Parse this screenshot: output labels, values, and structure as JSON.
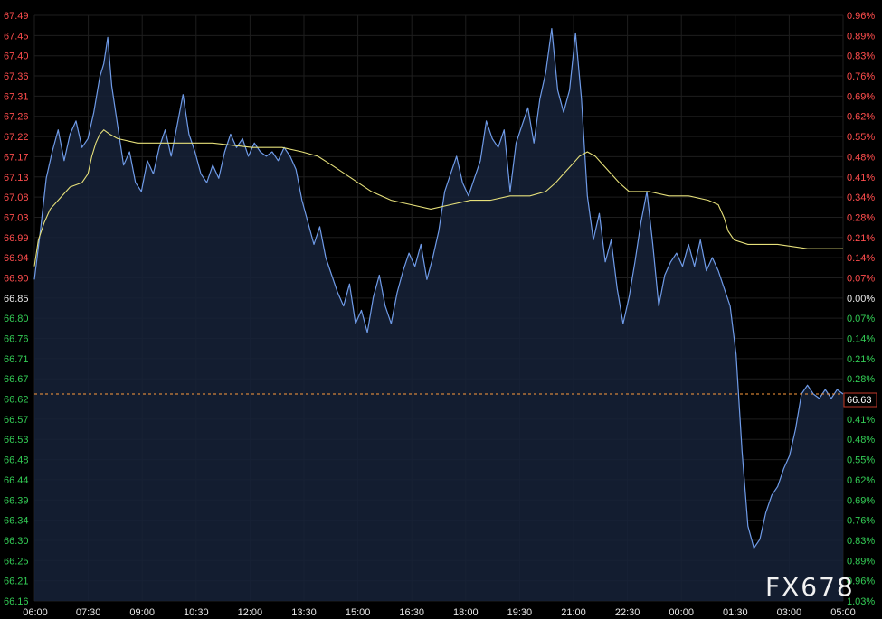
{
  "chart_data": {
    "type": "line",
    "reference_price": 66.85,
    "last_price": 66.63,
    "last_price_label": "66.63",
    "watermark": "FX678",
    "grid": true,
    "colors": {
      "background": "#000000",
      "grid": "#1e1e1e",
      "price_line": "#6f9be8",
      "price_fill": "#162238",
      "average_line": "#e6e07a",
      "reference_line": "#ff9b3d",
      "up_label": "#ff4d4d",
      "down_label": "#33cc55",
      "neutral_label": "#e8e8e8"
    },
    "x_ticks": [
      "06:00",
      "07:30",
      "09:00",
      "10:30",
      "12:00",
      "13:30",
      "15:00",
      "16:30",
      "18:00",
      "19:30",
      "21:00",
      "22:30",
      "00:00",
      "01:30",
      "03:00",
      "05:00"
    ],
    "y_ticks": [
      {
        "price": "67.49",
        "pct": "0.96%",
        "dir": "up"
      },
      {
        "price": "67.45",
        "pct": "0.89%",
        "dir": "up"
      },
      {
        "price": "67.40",
        "pct": "0.83%",
        "dir": "up"
      },
      {
        "price": "67.36",
        "pct": "0.76%",
        "dir": "up"
      },
      {
        "price": "67.31",
        "pct": "0.69%",
        "dir": "up"
      },
      {
        "price": "67.26",
        "pct": "0.62%",
        "dir": "up"
      },
      {
        "price": "67.22",
        "pct": "0.55%",
        "dir": "up"
      },
      {
        "price": "67.17",
        "pct": "0.48%",
        "dir": "up"
      },
      {
        "price": "67.13",
        "pct": "0.41%",
        "dir": "up"
      },
      {
        "price": "67.08",
        "pct": "0.34%",
        "dir": "up"
      },
      {
        "price": "67.03",
        "pct": "0.28%",
        "dir": "up"
      },
      {
        "price": "66.99",
        "pct": "0.21%",
        "dir": "up"
      },
      {
        "price": "66.94",
        "pct": "0.14%",
        "dir": "up"
      },
      {
        "price": "66.90",
        "pct": "0.07%",
        "dir": "up"
      },
      {
        "price": "66.85",
        "pct": "0.00%",
        "dir": "flat"
      },
      {
        "price": "66.80",
        "pct": "0.07%",
        "dir": "down"
      },
      {
        "price": "66.76",
        "pct": "0.14%",
        "dir": "down"
      },
      {
        "price": "66.71",
        "pct": "0.21%",
        "dir": "down"
      },
      {
        "price": "66.67",
        "pct": "0.28%",
        "dir": "down"
      },
      {
        "price": "66.62",
        "pct": "",
        "dir": "down"
      },
      {
        "price": "66.57",
        "pct": "0.41%",
        "dir": "down"
      },
      {
        "price": "66.53",
        "pct": "0.48%",
        "dir": "down"
      },
      {
        "price": "66.48",
        "pct": "0.55%",
        "dir": "down"
      },
      {
        "price": "66.44",
        "pct": "0.62%",
        "dir": "down"
      },
      {
        "price": "66.39",
        "pct": "0.69%",
        "dir": "down"
      },
      {
        "price": "66.34",
        "pct": "0.76%",
        "dir": "down"
      },
      {
        "price": "66.30",
        "pct": "0.83%",
        "dir": "down"
      },
      {
        "price": "66.25",
        "pct": "0.89%",
        "dir": "down"
      },
      {
        "price": "66.21",
        "pct": "0.96%",
        "dir": "down"
      },
      {
        "price": "66.16",
        "pct": "1.03%",
        "dir": "down"
      }
    ],
    "ylim": [
      66.16,
      67.49
    ],
    "series": [
      {
        "role": "price",
        "points": [
          [
            0,
            66.89
          ],
          [
            3,
            67.0
          ],
          [
            6,
            67.12
          ],
          [
            9,
            67.18
          ],
          [
            12,
            67.23
          ],
          [
            15,
            67.16
          ],
          [
            18,
            67.22
          ],
          [
            21,
            67.25
          ],
          [
            24,
            67.19
          ],
          [
            27,
            67.21
          ],
          [
            30,
            67.27
          ],
          [
            33,
            67.35
          ],
          [
            35,
            67.38
          ],
          [
            37,
            67.44
          ],
          [
            39,
            67.33
          ],
          [
            42,
            67.24
          ],
          [
            45,
            67.15
          ],
          [
            48,
            67.18
          ],
          [
            51,
            67.11
          ],
          [
            54,
            67.09
          ],
          [
            57,
            67.16
          ],
          [
            60,
            67.13
          ],
          [
            63,
            67.19
          ],
          [
            66,
            67.23
          ],
          [
            69,
            67.17
          ],
          [
            72,
            67.24
          ],
          [
            75,
            67.31
          ],
          [
            78,
            67.22
          ],
          [
            81,
            67.18
          ],
          [
            84,
            67.13
          ],
          [
            87,
            67.11
          ],
          [
            90,
            67.15
          ],
          [
            93,
            67.12
          ],
          [
            96,
            67.18
          ],
          [
            99,
            67.22
          ],
          [
            102,
            67.19
          ],
          [
            105,
            67.21
          ],
          [
            108,
            67.17
          ],
          [
            111,
            67.2
          ],
          [
            114,
            67.18
          ],
          [
            117,
            67.17
          ],
          [
            120,
            67.18
          ],
          [
            123,
            67.16
          ],
          [
            126,
            67.19
          ],
          [
            129,
            67.17
          ],
          [
            132,
            67.14
          ],
          [
            135,
            67.07
          ],
          [
            138,
            67.02
          ],
          [
            141,
            66.97
          ],
          [
            144,
            67.01
          ],
          [
            147,
            66.94
          ],
          [
            150,
            66.9
          ],
          [
            153,
            66.86
          ],
          [
            156,
            66.83
          ],
          [
            159,
            66.88
          ],
          [
            162,
            66.79
          ],
          [
            165,
            66.82
          ],
          [
            168,
            66.77
          ],
          [
            171,
            66.85
          ],
          [
            174,
            66.9
          ],
          [
            177,
            66.83
          ],
          [
            180,
            66.79
          ],
          [
            183,
            66.86
          ],
          [
            186,
            66.91
          ],
          [
            189,
            66.95
          ],
          [
            192,
            66.92
          ],
          [
            195,
            66.97
          ],
          [
            198,
            66.89
          ],
          [
            201,
            66.94
          ],
          [
            204,
            67.0
          ],
          [
            207,
            67.09
          ],
          [
            210,
            67.13
          ],
          [
            213,
            67.17
          ],
          [
            216,
            67.11
          ],
          [
            219,
            67.08
          ],
          [
            222,
            67.12
          ],
          [
            225,
            67.16
          ],
          [
            228,
            67.25
          ],
          [
            231,
            67.21
          ],
          [
            234,
            67.19
          ],
          [
            237,
            67.23
          ],
          [
            240,
            67.09
          ],
          [
            243,
            67.2
          ],
          [
            246,
            67.24
          ],
          [
            249,
            67.28
          ],
          [
            252,
            67.2
          ],
          [
            255,
            67.3
          ],
          [
            258,
            67.36
          ],
          [
            261,
            67.46
          ],
          [
            264,
            67.32
          ],
          [
            267,
            67.27
          ],
          [
            270,
            67.32
          ],
          [
            273,
            67.45
          ],
          [
            276,
            67.3
          ],
          [
            279,
            67.08
          ],
          [
            282,
            66.98
          ],
          [
            285,
            67.04
          ],
          [
            288,
            66.93
          ],
          [
            291,
            66.98
          ],
          [
            294,
            66.87
          ],
          [
            297,
            66.79
          ],
          [
            300,
            66.85
          ],
          [
            303,
            66.93
          ],
          [
            306,
            67.02
          ],
          [
            309,
            67.09
          ],
          [
            312,
            66.97
          ],
          [
            315,
            66.83
          ],
          [
            318,
            66.9
          ],
          [
            321,
            66.93
          ],
          [
            324,
            66.95
          ],
          [
            327,
            66.92
          ],
          [
            330,
            66.97
          ],
          [
            333,
            66.92
          ],
          [
            336,
            66.98
          ],
          [
            339,
            66.91
          ],
          [
            342,
            66.94
          ],
          [
            345,
            66.91
          ],
          [
            348,
            66.87
          ],
          [
            351,
            66.83
          ],
          [
            354,
            66.72
          ],
          [
            357,
            66.5
          ],
          [
            360,
            66.33
          ],
          [
            363,
            66.28
          ],
          [
            366,
            66.3
          ],
          [
            369,
            66.36
          ],
          [
            372,
            66.4
          ],
          [
            375,
            66.42
          ],
          [
            378,
            66.46
          ],
          [
            381,
            66.49
          ],
          [
            384,
            66.55
          ],
          [
            387,
            66.63
          ],
          [
            390,
            66.65
          ],
          [
            393,
            66.63
          ],
          [
            396,
            66.62
          ],
          [
            399,
            66.64
          ],
          [
            402,
            66.62
          ],
          [
            405,
            66.64
          ],
          [
            408,
            66.63
          ]
        ]
      },
      {
        "role": "average",
        "points": [
          [
            0,
            66.92
          ],
          [
            2,
            66.98
          ],
          [
            5,
            67.02
          ],
          [
            8,
            67.05
          ],
          [
            12,
            67.07
          ],
          [
            18,
            67.1
          ],
          [
            24,
            67.11
          ],
          [
            27,
            67.13
          ],
          [
            29,
            67.17
          ],
          [
            31,
            67.2
          ],
          [
            33,
            67.22
          ],
          [
            35,
            67.23
          ],
          [
            38,
            67.22
          ],
          [
            42,
            67.21
          ],
          [
            52,
            67.2
          ],
          [
            62,
            67.2
          ],
          [
            75,
            67.2
          ],
          [
            90,
            67.2
          ],
          [
            110,
            67.19
          ],
          [
            125,
            67.19
          ],
          [
            135,
            67.18
          ],
          [
            143,
            67.17
          ],
          [
            150,
            67.15
          ],
          [
            160,
            67.12
          ],
          [
            170,
            67.09
          ],
          [
            180,
            67.07
          ],
          [
            190,
            67.06
          ],
          [
            200,
            67.05
          ],
          [
            210,
            67.06
          ],
          [
            220,
            67.07
          ],
          [
            230,
            67.07
          ],
          [
            240,
            67.08
          ],
          [
            250,
            67.08
          ],
          [
            258,
            67.09
          ],
          [
            263,
            67.11
          ],
          [
            267,
            67.13
          ],
          [
            271,
            67.15
          ],
          [
            275,
            67.17
          ],
          [
            279,
            67.18
          ],
          [
            283,
            67.17
          ],
          [
            287,
            67.15
          ],
          [
            291,
            67.13
          ],
          [
            295,
            67.11
          ],
          [
            300,
            67.09
          ],
          [
            310,
            67.09
          ],
          [
            320,
            67.08
          ],
          [
            330,
            67.08
          ],
          [
            340,
            67.07
          ],
          [
            345,
            67.06
          ],
          [
            348,
            67.03
          ],
          [
            350,
            67.0
          ],
          [
            353,
            66.98
          ],
          [
            360,
            66.97
          ],
          [
            375,
            66.97
          ],
          [
            390,
            66.96
          ],
          [
            405,
            66.96
          ],
          [
            408,
            66.96
          ]
        ]
      }
    ]
  }
}
